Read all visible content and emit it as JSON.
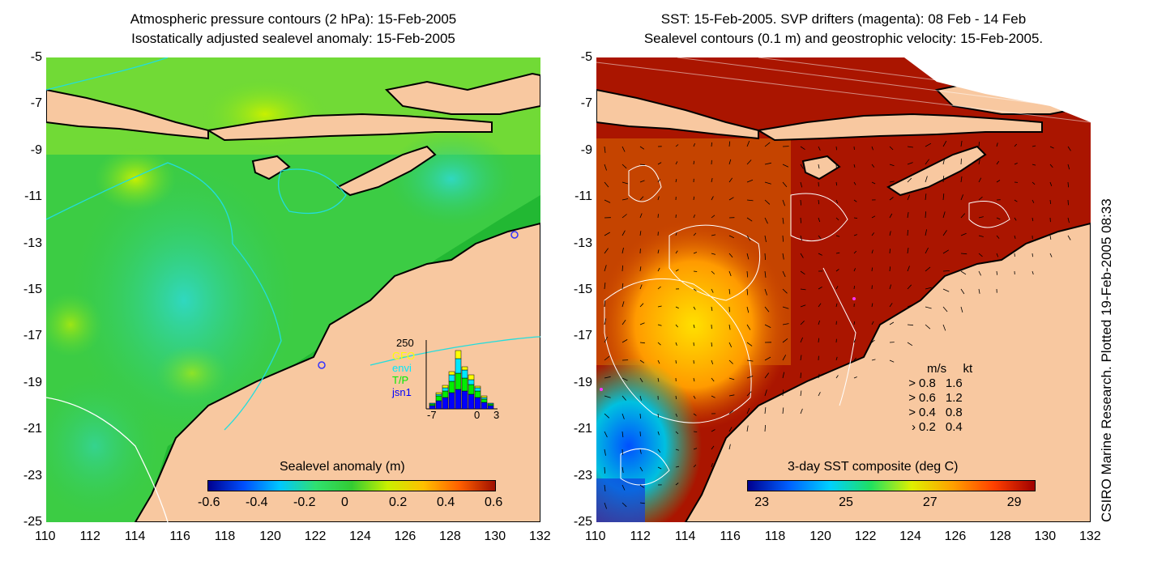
{
  "left_panel": {
    "title_line1": "Atmospheric pressure contours (2 hPa): 15-Feb-2005",
    "title_line2": "Isostatically adjusted sealevel anomaly: 15-Feb-2005",
    "colorbar_label": "Sealevel anomaly (m)",
    "colorbar_ticks": [
      "-0.6",
      "-0.4",
      "-0.2",
      "0",
      "0.2",
      "0.4",
      "0.6"
    ],
    "colorbar_colors": [
      "#00008f",
      "#0050ff",
      "#00c8ff",
      "#30e070",
      "#33cc33",
      "#c8f000",
      "#ffc000",
      "#ff6000",
      "#a01000"
    ],
    "histogram": {
      "ymax_label": "250",
      "x_labels": [
        "-7",
        "0",
        "3"
      ],
      "legend": [
        {
          "label": "GFO",
          "color": "#ffff00"
        },
        {
          "label": "envi",
          "color": "#00e8ff"
        },
        {
          "label": "T/P",
          "color": "#00ee00"
        },
        {
          "label": "jsn1",
          "color": "#0000ff"
        }
      ]
    }
  },
  "right_panel": {
    "title_line1": "SST: 15-Feb-2005. SVP drifters (magenta): 08 Feb - 14 Feb",
    "title_line2": "Sealevel contours (0.1 m) and geostrophic velocity: 15-Feb-2005.",
    "colorbar_label": "3-day SST composite (deg C)",
    "colorbar_ticks": [
      "23",
      "25",
      "27",
      "29"
    ],
    "colorbar_colors": [
      "#00008f",
      "#0060ff",
      "#00d0ff",
      "#20e060",
      "#e0f000",
      "#ffa000",
      "#ff4000",
      "#a00000"
    ],
    "velocity_legend": {
      "header_ms": "m/s",
      "header_kt": "kt",
      "rows": [
        {
          "ms": "0.8",
          "kt": "1.6"
        },
        {
          "ms": "0.6",
          "kt": "1.2"
        },
        {
          "ms": "0.4",
          "kt": "0.8"
        },
        {
          "ms": "0.2",
          "kt": "0.4"
        }
      ]
    }
  },
  "axes": {
    "y_ticks": [
      "-5",
      "-7",
      "-9",
      "-11",
      "-13",
      "-15",
      "-17",
      "-19",
      "-21",
      "-23",
      "-25"
    ],
    "x_ticks": [
      "110",
      "112",
      "114",
      "116",
      "118",
      "120",
      "122",
      "124",
      "126",
      "128",
      "130",
      "132"
    ]
  },
  "side_label": "CSIRO Marine Research. Plotted 19-Feb-2005 08:33",
  "colors": {
    "land": "#f8c8a0",
    "coast": "#000000",
    "contour_left": "#22dddd",
    "contour_right": "#ffffff"
  }
}
